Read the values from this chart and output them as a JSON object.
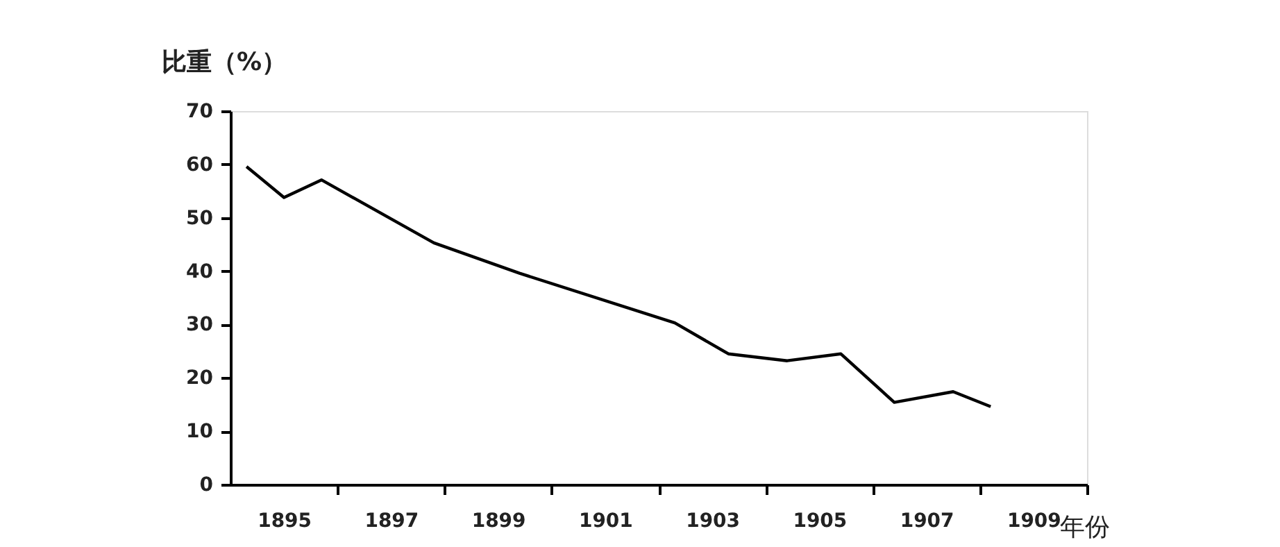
{
  "chart_data": {
    "type": "line",
    "xlabel": "年份",
    "ylabel": "比重（%）",
    "x": [
      1894.3,
      1895.0,
      1895.7,
      1897.8,
      1899.4,
      1902.3,
      1903.3,
      1904.4,
      1905.4,
      1906.4,
      1907.5,
      1908.2
    ],
    "series": [
      {
        "color": "#000000",
        "values": [
          59.6,
          53.8,
          57.1,
          45.3,
          39.6,
          30.3,
          24.5,
          23.2,
          24.5,
          15.4,
          17.4,
          14.6
        ]
      }
    ],
    "xlim": [
      1894,
      1910
    ],
    "xticks": [
      1895,
      {
        "value": 1896,
        "label": null
      },
      1897,
      {
        "value": 1898,
        "label": null
      },
      1899,
      {
        "value": 1900,
        "label": null
      },
      1901,
      {
        "value": 1902,
        "label": null
      },
      1903,
      {
        "value": 1904,
        "label": null
      },
      1905,
      {
        "value": 1906,
        "label": null
      },
      1907,
      {
        "value": 1908,
        "label": null
      },
      1909,
      {
        "value": 1910,
        "label": null
      }
    ],
    "ylim": [
      0,
      70
    ],
    "yticks": [
      0,
      10,
      20,
      30,
      40,
      50,
      60,
      70
    ],
    "grid": false,
    "marker": "none",
    "line_style": "solid"
  }
}
